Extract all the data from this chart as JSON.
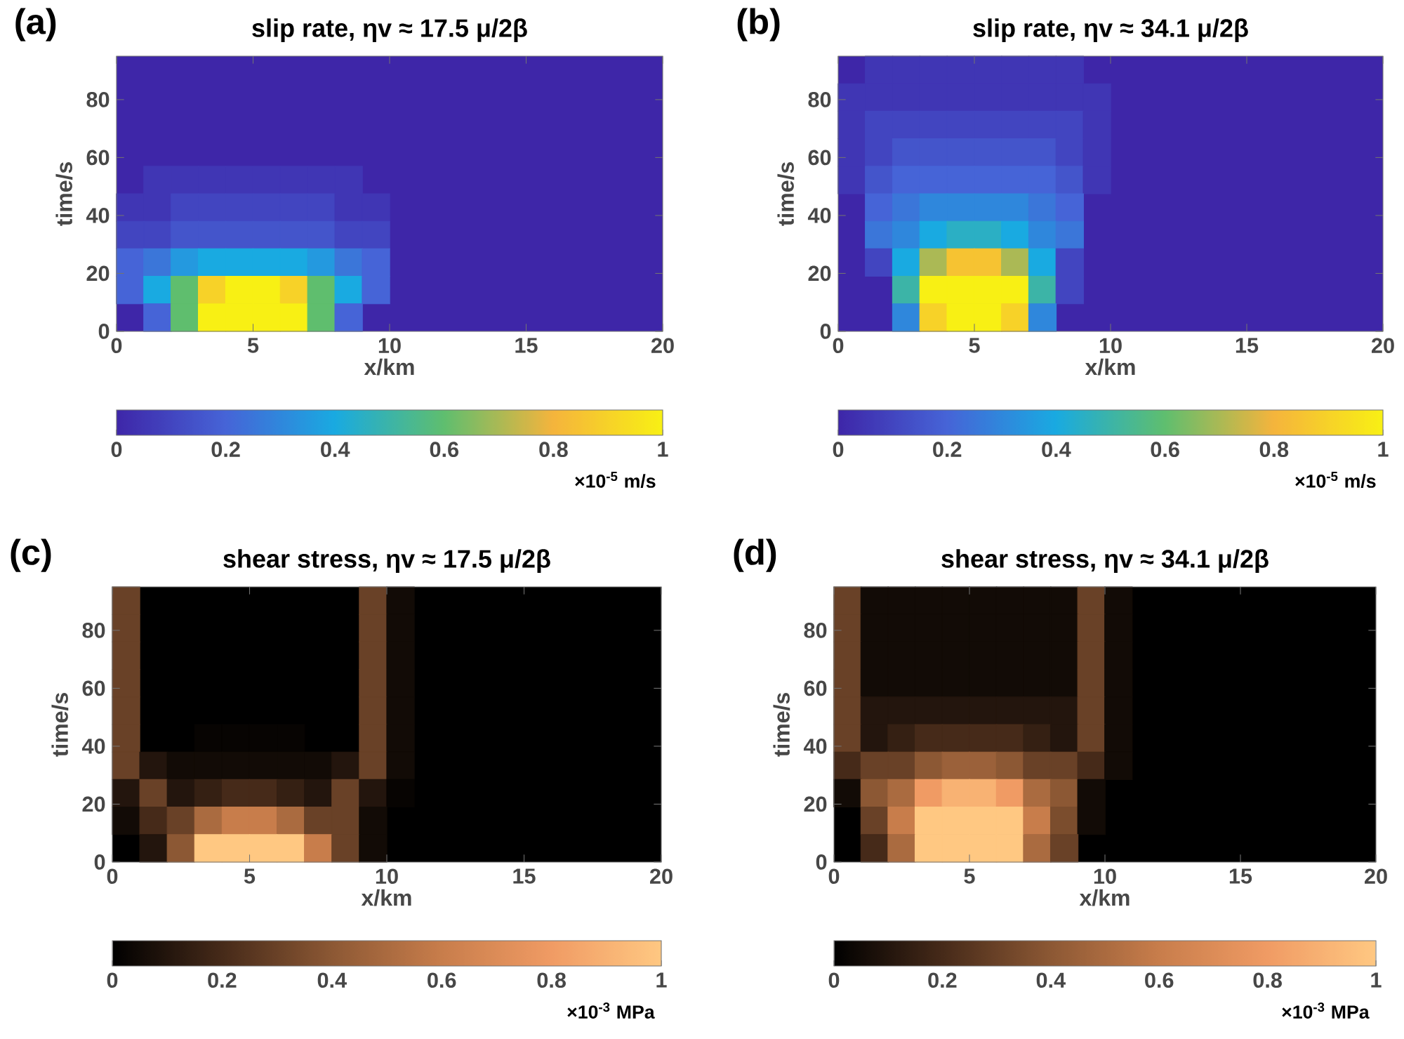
{
  "chart_data": [
    {
      "type": "scatter",
      "marker": "square",
      "title": "slip rate,  ηv ≈ 17.5 μ/2β",
      "xlabel": "x/km",
      "ylabel": "time/s",
      "clabel": "×10$^{-5}$ m/s",
      "annotations": [
        "(a)"
      ],
      "xlim": [
        0,
        20
      ],
      "xticks": [
        0,
        5,
        10,
        15,
        20
      ],
      "ylim": [
        0,
        95
      ],
      "yticks": [
        0,
        20,
        40,
        60,
        80
      ],
      "clim": [
        0,
        1
      ],
      "cticks": [
        0,
        0.2,
        0.4,
        0.6,
        0.8,
        1
      ],
      "x": [
        1.5,
        2.5,
        3.5,
        4.5,
        5.5,
        6.5,
        7.5,
        8.5,
        0.5,
        1.5,
        2.5,
        3.5,
        4.5,
        5.5,
        6.5,
        7.5,
        8.5,
        9.5,
        0.5,
        1.5,
        2.5,
        3.5,
        4.5,
        5.5,
        6.5,
        7.5,
        8.5,
        9.5,
        0.5,
        1.5,
        2.5,
        3.5,
        4.5,
        5.5,
        6.5,
        7.5,
        8.5,
        9.5,
        0.5,
        1.5,
        2.5,
        3.5,
        4.5,
        5.5,
        6.5,
        7.5,
        8.5,
        9.5,
        1.5,
        2.5,
        3.5,
        4.5,
        5.5,
        6.5,
        7.5,
        8.5
      ],
      "values": [
        52.25,
        52.25,
        52.25,
        52.25,
        52.25,
        52.25,
        52.25,
        52.25,
        42.75,
        42.75,
        42.75,
        42.75,
        42.75,
        42.75,
        42.75,
        42.75,
        42.75,
        42.75,
        33.25,
        33.25,
        33.25,
        33.25,
        33.25,
        33.25,
        33.25,
        33.25,
        33.25,
        33.25,
        23.75,
        23.75,
        23.75,
        23.75,
        23.75,
        23.75,
        23.75,
        23.75,
        23.75,
        23.75,
        14.25,
        14.25,
        14.25,
        14.25,
        14.25,
        14.25,
        14.25,
        14.25,
        14.25,
        14.25,
        4.75,
        4.75,
        4.75,
        4.75,
        4.75,
        4.75,
        4.75,
        4.75
      ],
      "cvalues": [
        0.05,
        0.05,
        0.05,
        0.05,
        0.05,
        0.05,
        0.05,
        0.05,
        0.05,
        0.05,
        0.1,
        0.1,
        0.1,
        0.1,
        0.1,
        0.1,
        0.05,
        0.05,
        0.1,
        0.1,
        0.15,
        0.15,
        0.15,
        0.15,
        0.15,
        0.15,
        0.1,
        0.1,
        0.2,
        0.25,
        0.35,
        0.4,
        0.4,
        0.4,
        0.4,
        0.35,
        0.25,
        0.2,
        0.2,
        0.4,
        0.6,
        0.9,
        1,
        1,
        0.9,
        0.6,
        0.4,
        0.2,
        0.2,
        0.6,
        1,
        1,
        1,
        1,
        0.6,
        0.2
      ]
    },
    {
      "type": "scatter",
      "marker": "square",
      "title": "slip rate,  ηv ≈ 34.1 μ/2β",
      "xlabel": "x/km",
      "ylabel": "time/s",
      "clabel": "×10$^{-5}$ m/s",
      "annotations": [
        "(b)"
      ],
      "xlim": [
        0,
        20
      ],
      "xticks": [
        0,
        5,
        10,
        15,
        20
      ],
      "ylim": [
        0,
        95
      ],
      "yticks": [
        0,
        20,
        40,
        60,
        80
      ],
      "clim": [
        0,
        1
      ],
      "cticks": [
        0,
        0.2,
        0.4,
        0.6,
        0.8,
        1
      ],
      "x": [
        1.5,
        2.5,
        3.5,
        4.5,
        5.5,
        6.5,
        7.5,
        8.5,
        0.5,
        1.5,
        2.5,
        3.5,
        4.5,
        5.5,
        6.5,
        7.5,
        8.5,
        9.5,
        0.5,
        1.5,
        2.5,
        3.5,
        4.5,
        5.5,
        6.5,
        7.5,
        8.5,
        9.5,
        0.5,
        1.5,
        2.5,
        3.5,
        4.5,
        5.5,
        6.5,
        7.5,
        8.5,
        9.5,
        0.5,
        1.5,
        2.5,
        3.5,
        4.5,
        5.5,
        6.5,
        7.5,
        8.5,
        9.5,
        1.5,
        2.5,
        3.5,
        4.5,
        5.5,
        6.5,
        7.5,
        8.5,
        1.5,
        2.5,
        3.5,
        4.5,
        5.5,
        6.5,
        7.5,
        8.5,
        1.5,
        2.5,
        3.5,
        4.5,
        5.5,
        6.5,
        7.5,
        8.5,
        2.5,
        3.5,
        4.5,
        5.5,
        6.5,
        7.5,
        8.5,
        2.5,
        3.5,
        4.5,
        5.5,
        6.5,
        7.5
      ],
      "values": [
        90.25,
        90.25,
        90.25,
        90.25,
        90.25,
        90.25,
        90.25,
        90.25,
        80.75,
        80.75,
        80.75,
        80.75,
        80.75,
        80.75,
        80.75,
        80.75,
        80.75,
        80.75,
        71.25,
        71.25,
        71.25,
        71.25,
        71.25,
        71.25,
        71.25,
        71.25,
        71.25,
        71.25,
        61.75,
        61.75,
        61.75,
        61.75,
        61.75,
        61.75,
        61.75,
        61.75,
        61.75,
        61.75,
        52.25,
        52.25,
        52.25,
        52.25,
        52.25,
        52.25,
        52.25,
        52.25,
        52.25,
        52.25,
        42.75,
        42.75,
        42.75,
        42.75,
        42.75,
        42.75,
        42.75,
        42.75,
        33.25,
        33.25,
        33.25,
        33.25,
        33.25,
        33.25,
        33.25,
        33.25,
        23.75,
        23.75,
        23.75,
        23.75,
        23.75,
        23.75,
        23.75,
        23.75,
        14.25,
        14.25,
        14.25,
        14.25,
        14.25,
        14.25,
        14.25,
        4.75,
        4.75,
        4.75,
        4.75,
        4.75,
        4.75
      ],
      "cvalues": [
        0.05,
        0.05,
        0.05,
        0.05,
        0.05,
        0.05,
        0.05,
        0.05,
        0.05,
        0.05,
        0.05,
        0.05,
        0.05,
        0.05,
        0.05,
        0.05,
        0.05,
        0.05,
        0.05,
        0.1,
        0.1,
        0.1,
        0.1,
        0.1,
        0.1,
        0.1,
        0.1,
        0.05,
        0.05,
        0.1,
        0.15,
        0.15,
        0.15,
        0.15,
        0.15,
        0.15,
        0.1,
        0.05,
        0.05,
        0.15,
        0.2,
        0.2,
        0.2,
        0.2,
        0.2,
        0.2,
        0.15,
        0.05,
        0.2,
        0.25,
        0.3,
        0.3,
        0.3,
        0.3,
        0.25,
        0.2,
        0.25,
        0.3,
        0.4,
        0.45,
        0.45,
        0.4,
        0.3,
        0.25,
        0.1,
        0.4,
        0.7,
        0.85,
        0.85,
        0.7,
        0.4,
        0.1,
        0.5,
        1,
        1,
        1,
        1,
        0.5,
        0.1,
        0.3,
        0.9,
        1,
        1,
        0.9,
        0.3
      ]
    },
    {
      "type": "scatter",
      "marker": "square",
      "title": "shear stress,  ηv ≈ 17.5 μ/2β",
      "xlabel": "x/km",
      "ylabel": "time/s",
      "clabel": "×10$^{-3}$ MPa",
      "annotations": [
        "(c)"
      ],
      "xlim": [
        0,
        20
      ],
      "xticks": [
        0,
        5,
        10,
        15,
        20
      ],
      "ylim": [
        0,
        95
      ],
      "yticks": [
        0,
        20,
        40,
        60,
        80
      ],
      "clim": [
        0,
        1
      ],
      "cticks": [
        0,
        0.2,
        0.4,
        0.6,
        0.8,
        1
      ],
      "x": [
        0.5,
        9.5,
        10.5,
        0.5,
        9.5,
        10.5,
        0.5,
        9.5,
        10.5,
        0.5,
        9.5,
        10.5,
        0.5,
        9.5,
        10.5,
        0.5,
        3.5,
        4.5,
        5.5,
        6.5,
        9.5,
        10.5,
        0.5,
        1.5,
        2.5,
        3.5,
        4.5,
        5.5,
        6.5,
        7.5,
        8.5,
        9.5,
        10.5,
        0.5,
        1.5,
        2.5,
        3.5,
        4.5,
        5.5,
        6.5,
        7.5,
        8.5,
        9.5,
        10.5,
        0.5,
        1.5,
        2.5,
        3.5,
        4.5,
        5.5,
        6.5,
        7.5,
        8.5,
        9.5,
        1.5,
        2.5,
        3.5,
        4.5,
        5.5,
        6.5,
        7.5,
        8.5,
        9.5
      ],
      "values": [
        90.25,
        90.25,
        90.25,
        80.75,
        80.75,
        80.75,
        71.25,
        71.25,
        71.25,
        61.75,
        61.75,
        61.75,
        52.25,
        52.25,
        52.25,
        42.75,
        42.75,
        42.75,
        42.75,
        42.75,
        42.75,
        42.75,
        33.25,
        33.25,
        33.25,
        33.25,
        33.25,
        33.25,
        33.25,
        33.25,
        33.25,
        33.25,
        33.25,
        23.75,
        23.75,
        23.75,
        23.75,
        23.75,
        23.75,
        23.75,
        23.75,
        23.75,
        23.75,
        23.75,
        14.25,
        14.25,
        14.25,
        14.25,
        14.25,
        14.25,
        14.25,
        14.25,
        14.25,
        14.25,
        4.75,
        4.75,
        4.75,
        4.75,
        4.75,
        4.75,
        4.75,
        4.75,
        4.75
      ],
      "cvalues": [
        0.3,
        0.3,
        0.05,
        0.3,
        0.3,
        0.05,
        0.3,
        0.3,
        0.05,
        0.3,
        0.3,
        0.05,
        0.3,
        0.3,
        0.05,
        0.3,
        0.02,
        0.02,
        0.02,
        0.02,
        0.3,
        0.05,
        0.3,
        0.1,
        0.05,
        0.05,
        0.05,
        0.05,
        0.05,
        0.05,
        0.1,
        0.3,
        0.05,
        0.1,
        0.3,
        0.1,
        0.15,
        0.2,
        0.2,
        0.15,
        0.1,
        0.3,
        0.1,
        0.02,
        0.05,
        0.2,
        0.3,
        0.5,
        0.6,
        0.6,
        0.5,
        0.3,
        0.3,
        0.05,
        0.1,
        0.4,
        1,
        1,
        1,
        1,
        0.6,
        0.3,
        0.05
      ]
    },
    {
      "type": "scatter",
      "marker": "square",
      "title": "shear stress,  ηv ≈ 34.1 μ/2β",
      "xlabel": "x/km",
      "ylabel": "time/s",
      "clabel": "×10$^{-3}$ MPa",
      "annotations": [
        "(d)"
      ],
      "xlim": [
        0,
        20
      ],
      "xticks": [
        0,
        5,
        10,
        15,
        20
      ],
      "ylim": [
        0,
        95
      ],
      "yticks": [
        0,
        20,
        40,
        60,
        80
      ],
      "clim": [
        0,
        1
      ],
      "cticks": [
        0,
        0.2,
        0.4,
        0.6,
        0.8,
        1
      ],
      "x": [
        0.5,
        1.5,
        2.5,
        3.5,
        4.5,
        5.5,
        6.5,
        7.5,
        8.5,
        9.5,
        10.5,
        0.5,
        1.5,
        2.5,
        3.5,
        4.5,
        5.5,
        6.5,
        7.5,
        8.5,
        9.5,
        10.5,
        0.5,
        1.5,
        2.5,
        3.5,
        4.5,
        5.5,
        6.5,
        7.5,
        8.5,
        9.5,
        10.5,
        0.5,
        1.5,
        2.5,
        3.5,
        4.5,
        5.5,
        6.5,
        7.5,
        8.5,
        9.5,
        10.5,
        0.5,
        1.5,
        2.5,
        3.5,
        4.5,
        5.5,
        6.5,
        7.5,
        8.5,
        9.5,
        10.5,
        0.5,
        1.5,
        2.5,
        3.5,
        4.5,
        5.5,
        6.5,
        7.5,
        8.5,
        9.5,
        10.5,
        0.5,
        1.5,
        2.5,
        3.5,
        4.5,
        5.5,
        6.5,
        7.5,
        8.5,
        9.5,
        10.5,
        0.5,
        1.5,
        2.5,
        3.5,
        4.5,
        5.5,
        6.5,
        7.5,
        8.5,
        9.5,
        1.5,
        2.5,
        3.5,
        4.5,
        5.5,
        6.5,
        7.5,
        8.5,
        9.5,
        1.5,
        2.5,
        3.5,
        4.5,
        5.5,
        6.5,
        7.5,
        8.5
      ],
      "values": [
        90.25,
        90.25,
        90.25,
        90.25,
        90.25,
        90.25,
        90.25,
        90.25,
        90.25,
        90.25,
        90.25,
        80.75,
        80.75,
        80.75,
        80.75,
        80.75,
        80.75,
        80.75,
        80.75,
        80.75,
        80.75,
        80.75,
        71.25,
        71.25,
        71.25,
        71.25,
        71.25,
        71.25,
        71.25,
        71.25,
        71.25,
        71.25,
        71.25,
        61.75,
        61.75,
        61.75,
        61.75,
        61.75,
        61.75,
        61.75,
        61.75,
        61.75,
        61.75,
        61.75,
        52.25,
        52.25,
        52.25,
        52.25,
        52.25,
        52.25,
        52.25,
        52.25,
        52.25,
        52.25,
        52.25,
        42.75,
        42.75,
        42.75,
        42.75,
        42.75,
        42.75,
        42.75,
        42.75,
        42.75,
        42.75,
        42.75,
        33.25,
        33.25,
        33.25,
        33.25,
        33.25,
        33.25,
        33.25,
        33.25,
        33.25,
        33.25,
        33.25,
        23.75,
        23.75,
        23.75,
        23.75,
        23.75,
        23.75,
        23.75,
        23.75,
        23.75,
        23.75,
        14.25,
        14.25,
        14.25,
        14.25,
        14.25,
        14.25,
        14.25,
        14.25,
        14.25,
        4.75,
        4.75,
        4.75,
        4.75,
        4.75,
        4.75,
        4.75,
        4.75
      ],
      "cvalues": [
        0.3,
        0.05,
        0.05,
        0.05,
        0.05,
        0.05,
        0.05,
        0.05,
        0.05,
        0.3,
        0.05,
        0.3,
        0.05,
        0.05,
        0.05,
        0.05,
        0.05,
        0.05,
        0.05,
        0.05,
        0.3,
        0.05,
        0.3,
        0.05,
        0.05,
        0.05,
        0.05,
        0.05,
        0.05,
        0.05,
        0.05,
        0.3,
        0.05,
        0.3,
        0.05,
        0.05,
        0.05,
        0.05,
        0.05,
        0.05,
        0.05,
        0.05,
        0.3,
        0.05,
        0.3,
        0.1,
        0.1,
        0.1,
        0.1,
        0.1,
        0.1,
        0.1,
        0.1,
        0.3,
        0.05,
        0.3,
        0.1,
        0.15,
        0.2,
        0.2,
        0.2,
        0.2,
        0.15,
        0.1,
        0.3,
        0.05,
        0.2,
        0.3,
        0.3,
        0.4,
        0.45,
        0.45,
        0.4,
        0.3,
        0.3,
        0.2,
        0.05,
        0.05,
        0.4,
        0.5,
        0.8,
        0.9,
        0.9,
        0.8,
        0.5,
        0.4,
        0.05,
        0.3,
        0.6,
        1,
        1,
        1,
        1,
        0.6,
        0.35,
        0.05,
        0.2,
        0.5,
        1,
        1,
        1,
        1,
        0.5,
        0.3
      ]
    }
  ]
}
